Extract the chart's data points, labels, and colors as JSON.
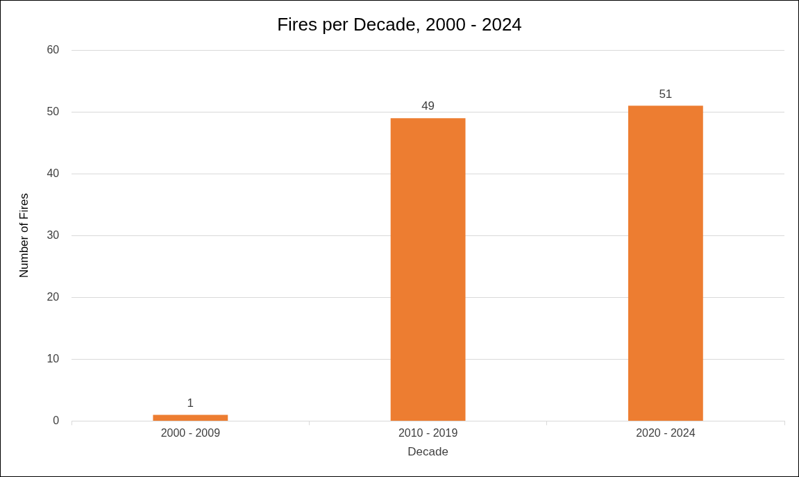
{
  "chart_data": {
    "type": "bar",
    "title": "Fires per Decade, 2000 - 2024",
    "xlabel": "Decade",
    "ylabel": "Number of Fires",
    "categories": [
      "2000 - 2009",
      "2010 - 2019",
      "2020 - 2024"
    ],
    "values": [
      1,
      49,
      51
    ],
    "color": "#ed7d31",
    "ylim": [
      0,
      60
    ],
    "yticks": [
      0,
      10,
      20,
      30,
      40,
      50,
      60
    ],
    "grid": "y",
    "data_labels": true,
    "legend": false
  }
}
